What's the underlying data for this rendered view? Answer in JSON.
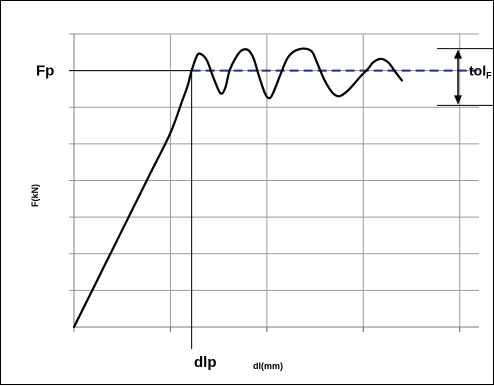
{
  "chart_data": {
    "type": "line",
    "title": "",
    "xlabel": "dl(mm)",
    "ylabel": "F(kN)",
    "xlim": [
      0,
      420
    ],
    "ylim": [
      0,
      8
    ],
    "grid": true,
    "x_grid": [
      0,
      100,
      200,
      300,
      400
    ],
    "y_grid": [
      1,
      2,
      3,
      4,
      5,
      6,
      7,
      8
    ],
    "annotations": {
      "force_label": "Fp",
      "displacement_label": "dlp",
      "tolerance_label": "tol",
      "tolerance_subscript": "F"
    },
    "reference": {
      "fp_value": 7.0,
      "dlp_value": 122,
      "tolerance_band": [
        6.05,
        7.6
      ],
      "line_color": "#1f2f8f"
    },
    "series": [
      {
        "color": "#000000",
        "x": [
          0,
          20,
          40,
          60,
          80,
          100,
          112,
          118,
          122,
          128,
          133,
          138,
          145,
          152,
          157,
          162,
          172,
          180,
          186,
          192,
          198,
          202,
          206,
          214,
          220,
          225,
          232,
          240,
          247,
          252,
          260,
          268,
          275,
          283,
          290,
          297,
          305,
          310,
          318,
          326,
          333,
          340
        ],
        "values": [
          0.0,
          1.06,
          2.12,
          3.18,
          4.24,
          5.3,
          6.16,
          6.6,
          7.0,
          7.43,
          7.43,
          7.27,
          6.78,
          6.38,
          6.54,
          7.05,
          7.51,
          7.57,
          7.35,
          6.84,
          6.38,
          6.25,
          6.36,
          6.89,
          7.27,
          7.46,
          7.57,
          7.6,
          7.51,
          7.22,
          6.73,
          6.4,
          6.3,
          6.43,
          6.62,
          6.84,
          7.05,
          7.22,
          7.32,
          7.22,
          6.97,
          6.73
        ]
      }
    ]
  }
}
